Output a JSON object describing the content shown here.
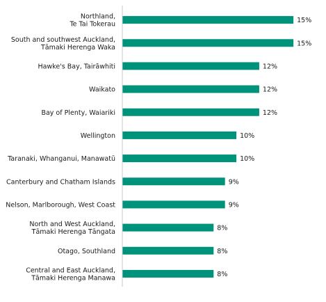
{
  "chart_data": {
    "type": "bar",
    "orientation": "horizontal",
    "categories": [
      [
        "Northland,",
        "Te Tai Tokerau"
      ],
      [
        "South and southwest Auckland,",
        "Tāmaki Herenga Waka"
      ],
      [
        "Hawke's Bay, Tairāwhiti"
      ],
      [
        "Waikato"
      ],
      [
        "Bay of Plenty, Waiariki"
      ],
      [
        "Wellington"
      ],
      [
        "Taranaki, Whanganui, Manawatū"
      ],
      [
        "Canterbury and Chatham Islands"
      ],
      [
        "Nelson, Marlborough, West Coast"
      ],
      [
        "North and West Auckland,",
        "Tāmaki Herenga Tāngata"
      ],
      [
        "Otago, Southland"
      ],
      [
        "Central and East Auckland,",
        "Tāmaki Herenga Manawa"
      ]
    ],
    "values": [
      15,
      15,
      12,
      12,
      12,
      10,
      10,
      9,
      9,
      8,
      8,
      8
    ],
    "value_labels": [
      "15%",
      "15%",
      "12%",
      "12%",
      "12%",
      "10%",
      "10%",
      "9%",
      "9%",
      "8%",
      "8%",
      "8%"
    ],
    "bar_color": "#00937b",
    "axis_color": "#c8c8c8",
    "xlim": [
      0,
      15.6
    ],
    "grid": false,
    "legend": "none"
  }
}
